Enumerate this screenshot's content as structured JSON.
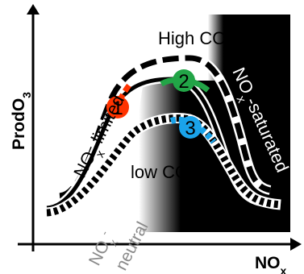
{
  "y_axis_label": {
    "main": "ProdO",
    "sub": "3"
  },
  "x_axis_label": {
    "main": "NO",
    "sub": "x"
  },
  "curve_labels": {
    "high_co": "High CO",
    "low_co": "low CO"
  },
  "regime_labels": {
    "limited": {
      "main": "NO",
      "sub": "x",
      "rest": "-limited"
    },
    "saturated": {
      "main": "NO",
      "sub": "x",
      "rest": "-saturated"
    },
    "neutral": {
      "main": "NO",
      "sub": "x",
      "sup": "-",
      "rest": "neutral"
    }
  },
  "markers": [
    {
      "label": "1",
      "color": "#ff3300"
    },
    {
      "label": "2",
      "color": "#22a547"
    },
    {
      "label": "3",
      "color": "#1aa3ea"
    }
  ],
  "colors": {
    "saturated_region": "#000000",
    "neutral_text": "#8a8a8a",
    "axis": "#000000"
  }
}
